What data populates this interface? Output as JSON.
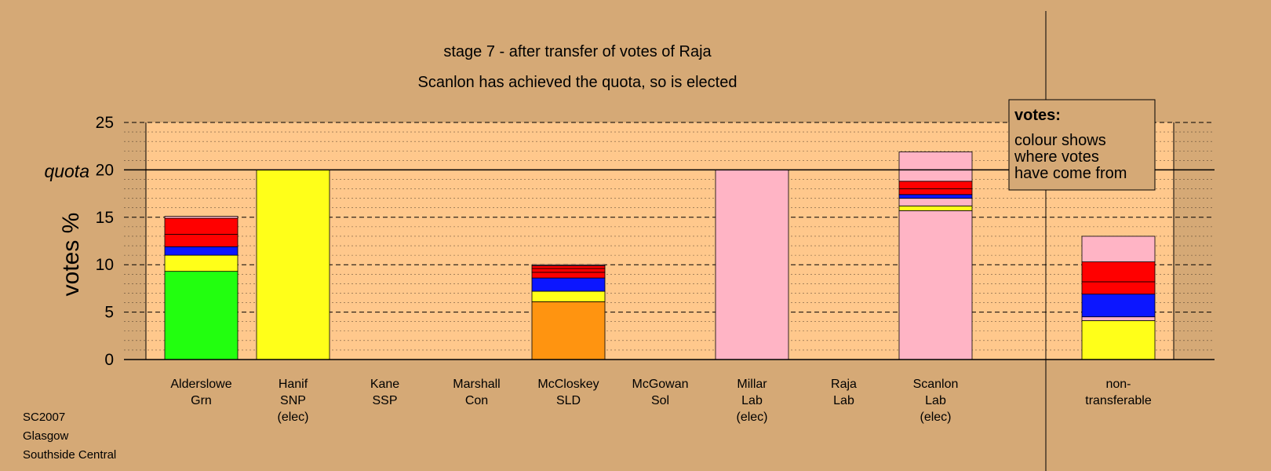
{
  "title": "stage 7 - after transfer of votes of Raja",
  "subtitle": "Scanlon has achieved the quota, so is elected",
  "footer": [
    "SC2007",
    "Glasgow",
    "Southside Central"
  ],
  "legend": {
    "title": "votes:",
    "lines": [
      "colour shows",
      "where votes",
      "have come from"
    ]
  },
  "colors": {
    "background": "#D5A976",
    "plot_area": "#FFC88C",
    "Grn": "#22FF0F",
    "SNP": "#FFFF19",
    "SLD": "#FF9410",
    "Lab": "#FFB4C5",
    "Red": "#FF0000",
    "Blue": "#0C16FF"
  },
  "chart_data": {
    "type": "bar",
    "stacked": true,
    "title": "stage 7 - after transfer of votes of Raja",
    "subtitle": "Scanlon has achieved the quota, so is elected",
    "ylabel": "votes %",
    "ylim": [
      0,
      25
    ],
    "yticks": [
      "0",
      "5",
      "10",
      "15",
      "20",
      "25"
    ],
    "quota_label": "quota",
    "quota": 20,
    "grid": true,
    "legend_position": "top-right",
    "categories": [
      {
        "lines": [
          "Alderslowe",
          "Grn"
        ],
        "segments": [
          {
            "color": "Grn",
            "value": 9.3
          },
          {
            "color": "SNP",
            "value": 1.7
          },
          {
            "color": "Blue",
            "value": 0.9
          },
          {
            "color": "Red",
            "value": 1.3
          },
          {
            "color": "Red",
            "value": 1.7
          },
          {
            "color": "Lab",
            "value": 0.2
          }
        ]
      },
      {
        "lines": [
          "Hanif",
          "SNP",
          "(elec)"
        ],
        "segments": [
          {
            "color": "SNP",
            "value": 20.0
          }
        ]
      },
      {
        "lines": [
          "Kane",
          "SSP"
        ],
        "segments": []
      },
      {
        "lines": [
          "Marshall",
          "Con"
        ],
        "segments": []
      },
      {
        "lines": [
          "McCloskey",
          "SLD"
        ],
        "segments": [
          {
            "color": "SLD",
            "value": 6.1
          },
          {
            "color": "SNP",
            "value": 1.1
          },
          {
            "color": "Blue",
            "value": 1.4
          },
          {
            "color": "Red",
            "value": 0.6
          },
          {
            "color": "Red",
            "value": 0.4
          },
          {
            "color": "Red",
            "value": 0.3
          },
          {
            "color": "Lab",
            "value": 0.1
          }
        ]
      },
      {
        "lines": [
          "McGowan",
          "Sol"
        ],
        "segments": []
      },
      {
        "lines": [
          "Millar",
          "Lab",
          "(elec)"
        ],
        "segments": [
          {
            "color": "Lab",
            "value": 20.0
          }
        ]
      },
      {
        "lines": [
          "Raja",
          "Lab"
        ],
        "segments": []
      },
      {
        "lines": [
          "Scanlon",
          "Lab",
          "(elec)"
        ],
        "segments": [
          {
            "color": "Lab",
            "value": 15.7
          },
          {
            "color": "SNP",
            "value": 0.5
          },
          {
            "color": "Lab",
            "value": 0.8
          },
          {
            "color": "Blue",
            "value": 0.4
          },
          {
            "color": "Red",
            "value": 0.6
          },
          {
            "color": "Red",
            "value": 0.8
          },
          {
            "color": "Lab",
            "value": 3.1
          }
        ]
      },
      {
        "lines": [
          "non-",
          "transferable"
        ],
        "segments": [
          {
            "color": "SNP",
            "value": 4.1
          },
          {
            "color": "Lab",
            "value": 0.4
          },
          {
            "color": "Blue",
            "value": 2.4
          },
          {
            "color": "Red",
            "value": 1.3
          },
          {
            "color": "Red",
            "value": 2.1
          },
          {
            "color": "Lab",
            "value": 2.7
          }
        ]
      }
    ]
  }
}
